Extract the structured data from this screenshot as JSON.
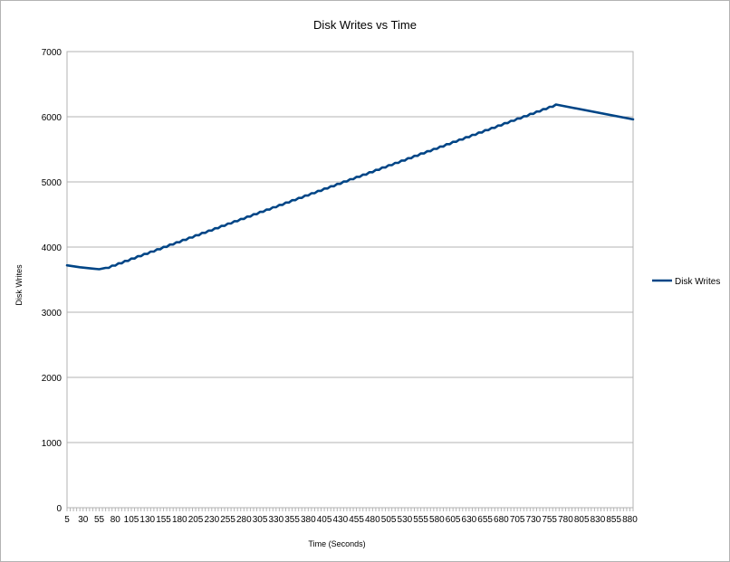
{
  "chart_data": {
    "type": "line",
    "title": "Disk Writes vs Time",
    "xlabel": "Time (Seconds)",
    "ylabel": "Disk Writes",
    "ylim": [
      0,
      7000
    ],
    "yticks": [
      0,
      1000,
      2000,
      3000,
      4000,
      5000,
      6000,
      7000
    ],
    "x_range": [
      5,
      885
    ],
    "x_step": 5,
    "x_tick_labels": [
      "5",
      "30",
      "55",
      "80",
      "105",
      "130",
      "155",
      "180",
      "205",
      "230",
      "255",
      "280",
      "305",
      "330",
      "355",
      "380",
      "405",
      "430",
      "455",
      "480",
      "505",
      "530",
      "555",
      "580",
      "605",
      "630",
      "655",
      "680",
      "705",
      "730",
      "755",
      "780",
      "805",
      "830",
      "855",
      "880"
    ],
    "grid": "horizontal",
    "legend_position": "right",
    "line_color": "#004586",
    "series": [
      {
        "name": "Disk Writes",
        "x": [
          5,
          25,
          45,
          55,
          65,
          760,
          885
        ],
        "values": [
          3720,
          3690,
          3670,
          3660,
          3680,
          6170,
          5960
        ],
        "note_steps_between_65_and_760": "stair-step rise with period 10s, step ~37"
      }
    ]
  }
}
